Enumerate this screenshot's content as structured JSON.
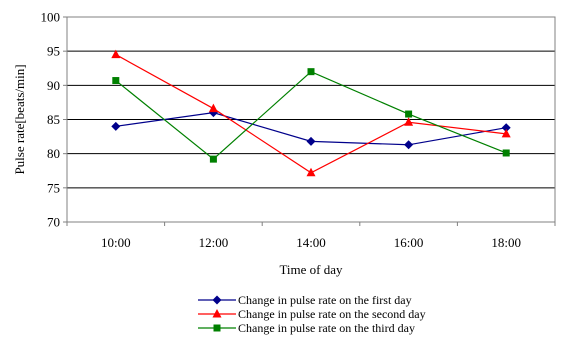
{
  "chart_data": {
    "type": "line",
    "title": "",
    "xlabel": "Time of day",
    "ylabel": "Pulse rate[beats/min]",
    "categories": [
      "10:00",
      "12:00",
      "14:00",
      "16:00",
      "18:00"
    ],
    "ylim": [
      70,
      100
    ],
    "yticks": [
      70,
      75,
      80,
      85,
      90,
      95,
      100
    ],
    "grid": true,
    "legend_position": "bottom",
    "series": [
      {
        "name": "Change in pulse rate on the first day",
        "color": "#00008b",
        "marker": "diamond",
        "values": [
          84.0,
          86.0,
          81.8,
          81.3,
          83.8
        ]
      },
      {
        "name": "Change in pulse rate on the second day",
        "color": "#ff0000",
        "marker": "triangle",
        "values": [
          94.5,
          86.6,
          77.2,
          84.6,
          82.9
        ]
      },
      {
        "name": "Change in pulse rate on the third day",
        "color": "#008000",
        "marker": "square",
        "values": [
          90.7,
          79.2,
          92.0,
          85.8,
          80.1
        ]
      }
    ]
  }
}
